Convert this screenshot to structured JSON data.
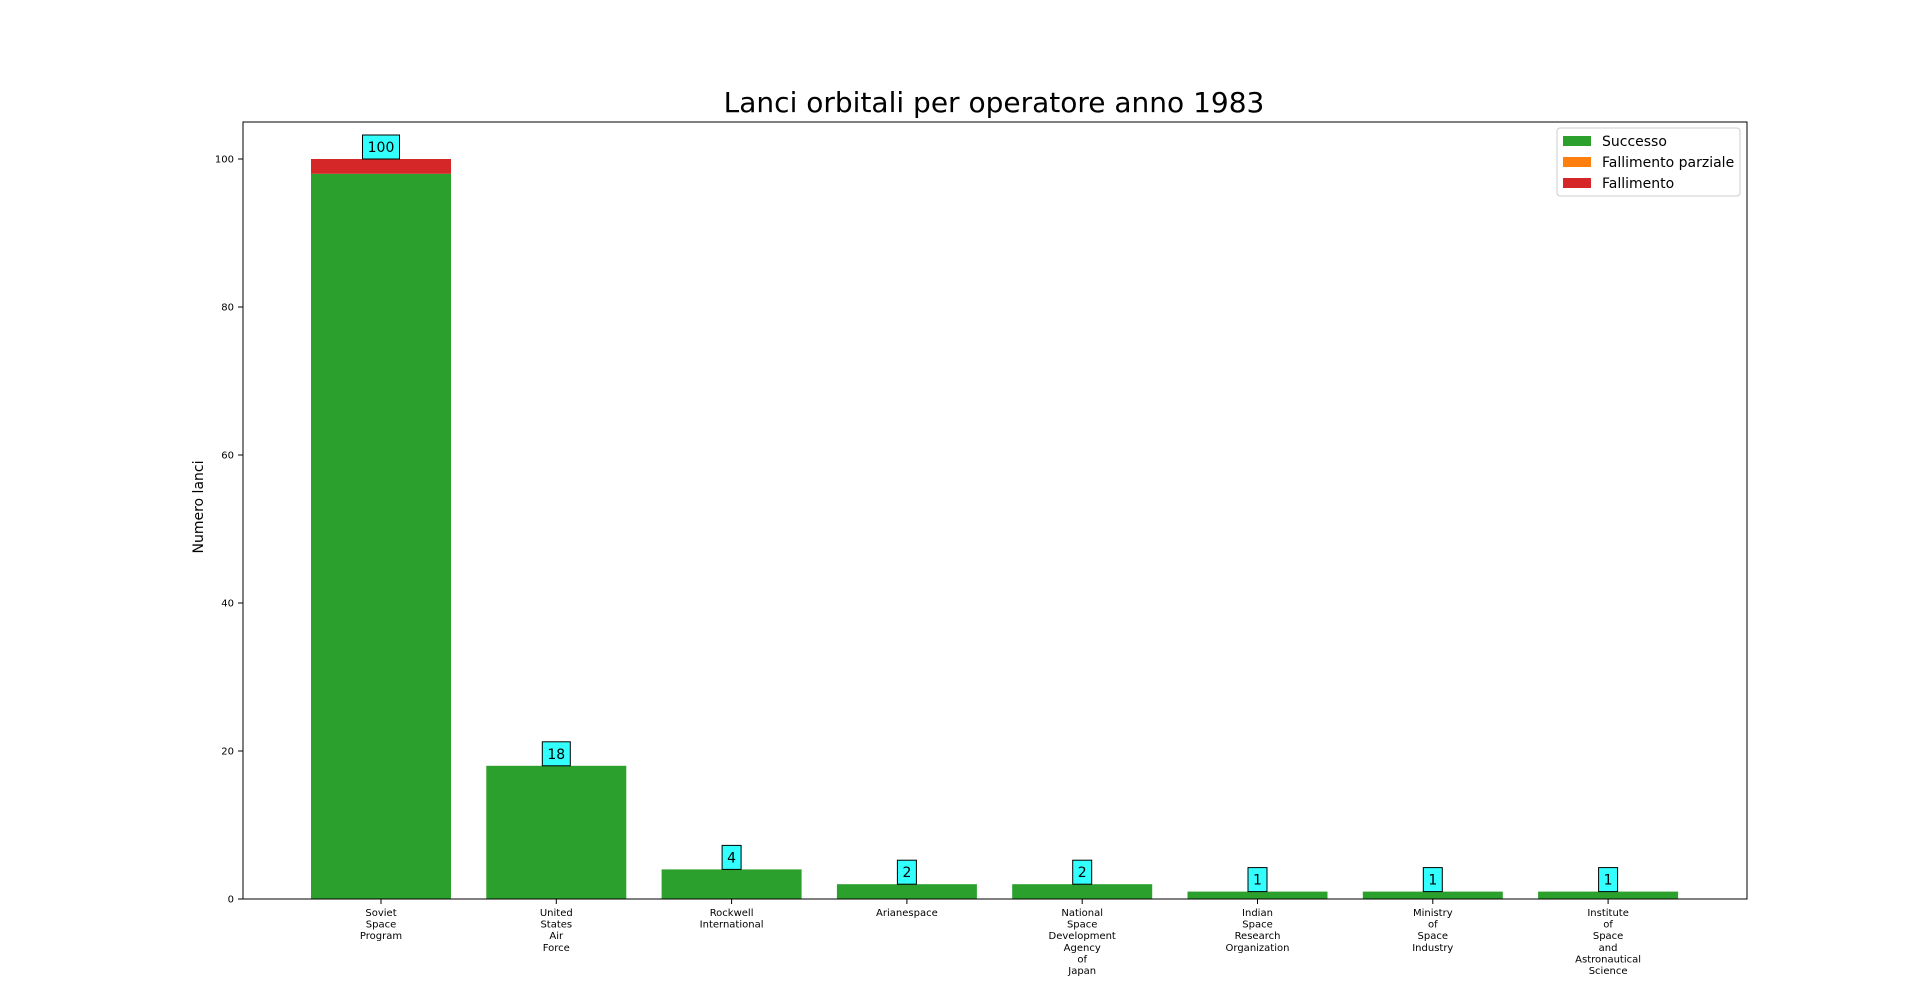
{
  "chart_data": {
    "type": "bar",
    "stacked": true,
    "title": "Lanci orbitali per operatore anno 1983",
    "xlabel": "",
    "ylabel": "Numero lanci",
    "ylim": [
      0,
      105
    ],
    "yticks": [
      0,
      20,
      40,
      60,
      80,
      100
    ],
    "grid": false,
    "legend_position": "top-right",
    "categories": [
      [
        "Soviet",
        "Space",
        "Program"
      ],
      [
        "United",
        "States",
        "Air",
        "Force"
      ],
      [
        "Rockwell",
        "International"
      ],
      [
        "Arianespace"
      ],
      [
        "National",
        "Space",
        "Development",
        "Agency",
        "of",
        "Japan"
      ],
      [
        "Indian",
        "Space",
        "Research",
        "Organization"
      ],
      [
        "Ministry",
        "of",
        "Space",
        "Industry"
      ],
      [
        "Institute",
        "of",
        "Space",
        "and",
        "Astronautical",
        "Science"
      ]
    ],
    "series": [
      {
        "name": "Successo",
        "color": "#2ca02c",
        "values": [
          98,
          18,
          4,
          2,
          2,
          1,
          1,
          1
        ]
      },
      {
        "name": "Fallimento parziale",
        "color": "#ff7f0e",
        "values": [
          0,
          0,
          0,
          0,
          0,
          0,
          0,
          0
        ]
      },
      {
        "name": "Fallimento",
        "color": "#d62728",
        "values": [
          2,
          0,
          0,
          0,
          0,
          0,
          0,
          0
        ]
      }
    ],
    "totals": [
      "100",
      "18",
      "4",
      "2",
      "2",
      "1",
      "1",
      "1"
    ],
    "total_label_color": "#33ffff"
  }
}
